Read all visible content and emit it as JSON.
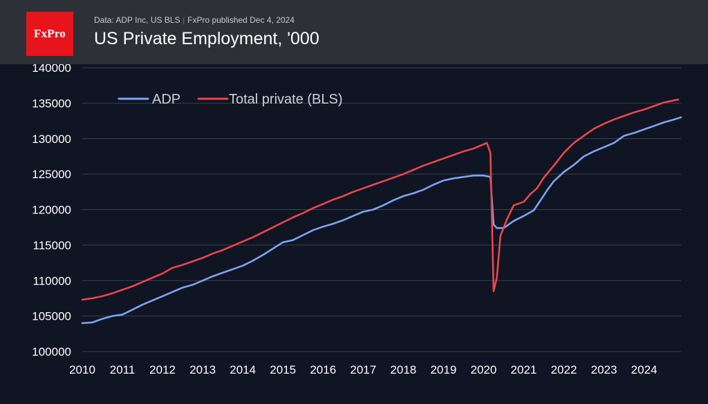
{
  "header": {
    "logo_text": "FxPro",
    "source_line": "Data: ADP Inc, US BLS",
    "published": "FxPro published Dec 4, 2024",
    "title": "US Private Employment, '000"
  },
  "colors": {
    "background": "#0f1522",
    "header_bg": "#2e3037",
    "logo_bg": "#e8141c",
    "adp": "#7ea3f5",
    "bls": "#f0444b",
    "grid": "#3a4150",
    "tick_text": "#ffffff",
    "legend_text": "#cfd2d8"
  },
  "chart_data": {
    "type": "line",
    "xlim": [
      2010,
      2024.92
    ],
    "ylim": [
      100000,
      140000
    ],
    "yticks": [
      100000,
      105000,
      110000,
      115000,
      120000,
      125000,
      130000,
      135000,
      140000
    ],
    "xticks": [
      2010,
      2011,
      2012,
      2013,
      2014,
      2015,
      2016,
      2017,
      2018,
      2019,
      2020,
      2021,
      2022,
      2023,
      2024
    ],
    "legend_position": "top-left",
    "grid": "horizontal",
    "series": [
      {
        "name": "ADP",
        "color": "#7ea3f5",
        "points": [
          [
            2010.0,
            104000
          ],
          [
            2010.25,
            104100
          ],
          [
            2010.5,
            104600
          ],
          [
            2010.75,
            105000
          ],
          [
            2011.0,
            105200
          ],
          [
            2011.25,
            105900
          ],
          [
            2011.5,
            106600
          ],
          [
            2011.75,
            107200
          ],
          [
            2012.0,
            107800
          ],
          [
            2012.25,
            108400
          ],
          [
            2012.5,
            109000
          ],
          [
            2012.75,
            109400
          ],
          [
            2013.0,
            110000
          ],
          [
            2013.25,
            110600
          ],
          [
            2013.5,
            111100
          ],
          [
            2013.75,
            111600
          ],
          [
            2014.0,
            112100
          ],
          [
            2014.25,
            112800
          ],
          [
            2014.5,
            113600
          ],
          [
            2014.75,
            114500
          ],
          [
            2015.0,
            115400
          ],
          [
            2015.25,
            115700
          ],
          [
            2015.5,
            116400
          ],
          [
            2015.75,
            117100
          ],
          [
            2016.0,
            117600
          ],
          [
            2016.25,
            118000
          ],
          [
            2016.5,
            118500
          ],
          [
            2016.75,
            119100
          ],
          [
            2017.0,
            119700
          ],
          [
            2017.25,
            120000
          ],
          [
            2017.5,
            120600
          ],
          [
            2017.75,
            121300
          ],
          [
            2018.0,
            121900
          ],
          [
            2018.25,
            122300
          ],
          [
            2018.5,
            122800
          ],
          [
            2018.75,
            123500
          ],
          [
            2019.0,
            124100
          ],
          [
            2019.25,
            124400
          ],
          [
            2019.5,
            124600
          ],
          [
            2019.75,
            124800
          ],
          [
            2019.9,
            124800
          ],
          [
            2020.0,
            124800
          ],
          [
            2020.17,
            124600
          ],
          [
            2020.25,
            117900
          ],
          [
            2020.33,
            117400
          ],
          [
            2020.5,
            117400
          ],
          [
            2020.75,
            118400
          ],
          [
            2021.0,
            119100
          ],
          [
            2021.25,
            119900
          ],
          [
            2021.42,
            121300
          ],
          [
            2021.58,
            122700
          ],
          [
            2021.75,
            124000
          ],
          [
            2022.0,
            125300
          ],
          [
            2022.25,
            126300
          ],
          [
            2022.5,
            127500
          ],
          [
            2022.75,
            128200
          ],
          [
            2023.0,
            128800
          ],
          [
            2023.25,
            129400
          ],
          [
            2023.5,
            130400
          ],
          [
            2023.75,
            130800
          ],
          [
            2024.0,
            131300
          ],
          [
            2024.25,
            131800
          ],
          [
            2024.5,
            132300
          ],
          [
            2024.75,
            132700
          ],
          [
            2024.92,
            133000
          ]
        ]
      },
      {
        "name": "Total private (BLS)",
        "color": "#f0444b",
        "points": [
          [
            2010.0,
            107300
          ],
          [
            2010.25,
            107500
          ],
          [
            2010.5,
            107800
          ],
          [
            2010.75,
            108200
          ],
          [
            2011.0,
            108700
          ],
          [
            2011.25,
            109200
          ],
          [
            2011.5,
            109800
          ],
          [
            2011.75,
            110400
          ],
          [
            2012.0,
            111000
          ],
          [
            2012.25,
            111800
          ],
          [
            2012.5,
            112200
          ],
          [
            2012.75,
            112700
          ],
          [
            2013.0,
            113200
          ],
          [
            2013.25,
            113800
          ],
          [
            2013.5,
            114300
          ],
          [
            2013.75,
            114900
          ],
          [
            2014.0,
            115500
          ],
          [
            2014.25,
            116100
          ],
          [
            2014.5,
            116800
          ],
          [
            2014.75,
            117500
          ],
          [
            2015.0,
            118200
          ],
          [
            2015.25,
            118900
          ],
          [
            2015.5,
            119500
          ],
          [
            2015.75,
            120200
          ],
          [
            2016.0,
            120800
          ],
          [
            2016.25,
            121400
          ],
          [
            2016.5,
            121900
          ],
          [
            2016.75,
            122500
          ],
          [
            2017.0,
            123000
          ],
          [
            2017.25,
            123500
          ],
          [
            2017.5,
            124000
          ],
          [
            2017.75,
            124500
          ],
          [
            2018.0,
            125000
          ],
          [
            2018.25,
            125600
          ],
          [
            2018.5,
            126200
          ],
          [
            2018.75,
            126700
          ],
          [
            2019.0,
            127200
          ],
          [
            2019.25,
            127700
          ],
          [
            2019.5,
            128200
          ],
          [
            2019.75,
            128600
          ],
          [
            2020.0,
            129200
          ],
          [
            2020.08,
            129400
          ],
          [
            2020.17,
            128000
          ],
          [
            2020.25,
            108500
          ],
          [
            2020.33,
            110400
          ],
          [
            2020.42,
            116300
          ],
          [
            2020.58,
            118600
          ],
          [
            2020.75,
            120600
          ],
          [
            2021.0,
            121100
          ],
          [
            2021.17,
            122200
          ],
          [
            2021.33,
            123000
          ],
          [
            2021.5,
            124500
          ],
          [
            2021.75,
            126200
          ],
          [
            2022.0,
            128000
          ],
          [
            2022.25,
            129400
          ],
          [
            2022.5,
            130400
          ],
          [
            2022.75,
            131400
          ],
          [
            2023.0,
            132100
          ],
          [
            2023.25,
            132700
          ],
          [
            2023.5,
            133200
          ],
          [
            2023.75,
            133700
          ],
          [
            2024.0,
            134100
          ],
          [
            2024.25,
            134600
          ],
          [
            2024.5,
            135100
          ],
          [
            2024.75,
            135400
          ],
          [
            2024.85,
            135500
          ]
        ]
      }
    ]
  }
}
